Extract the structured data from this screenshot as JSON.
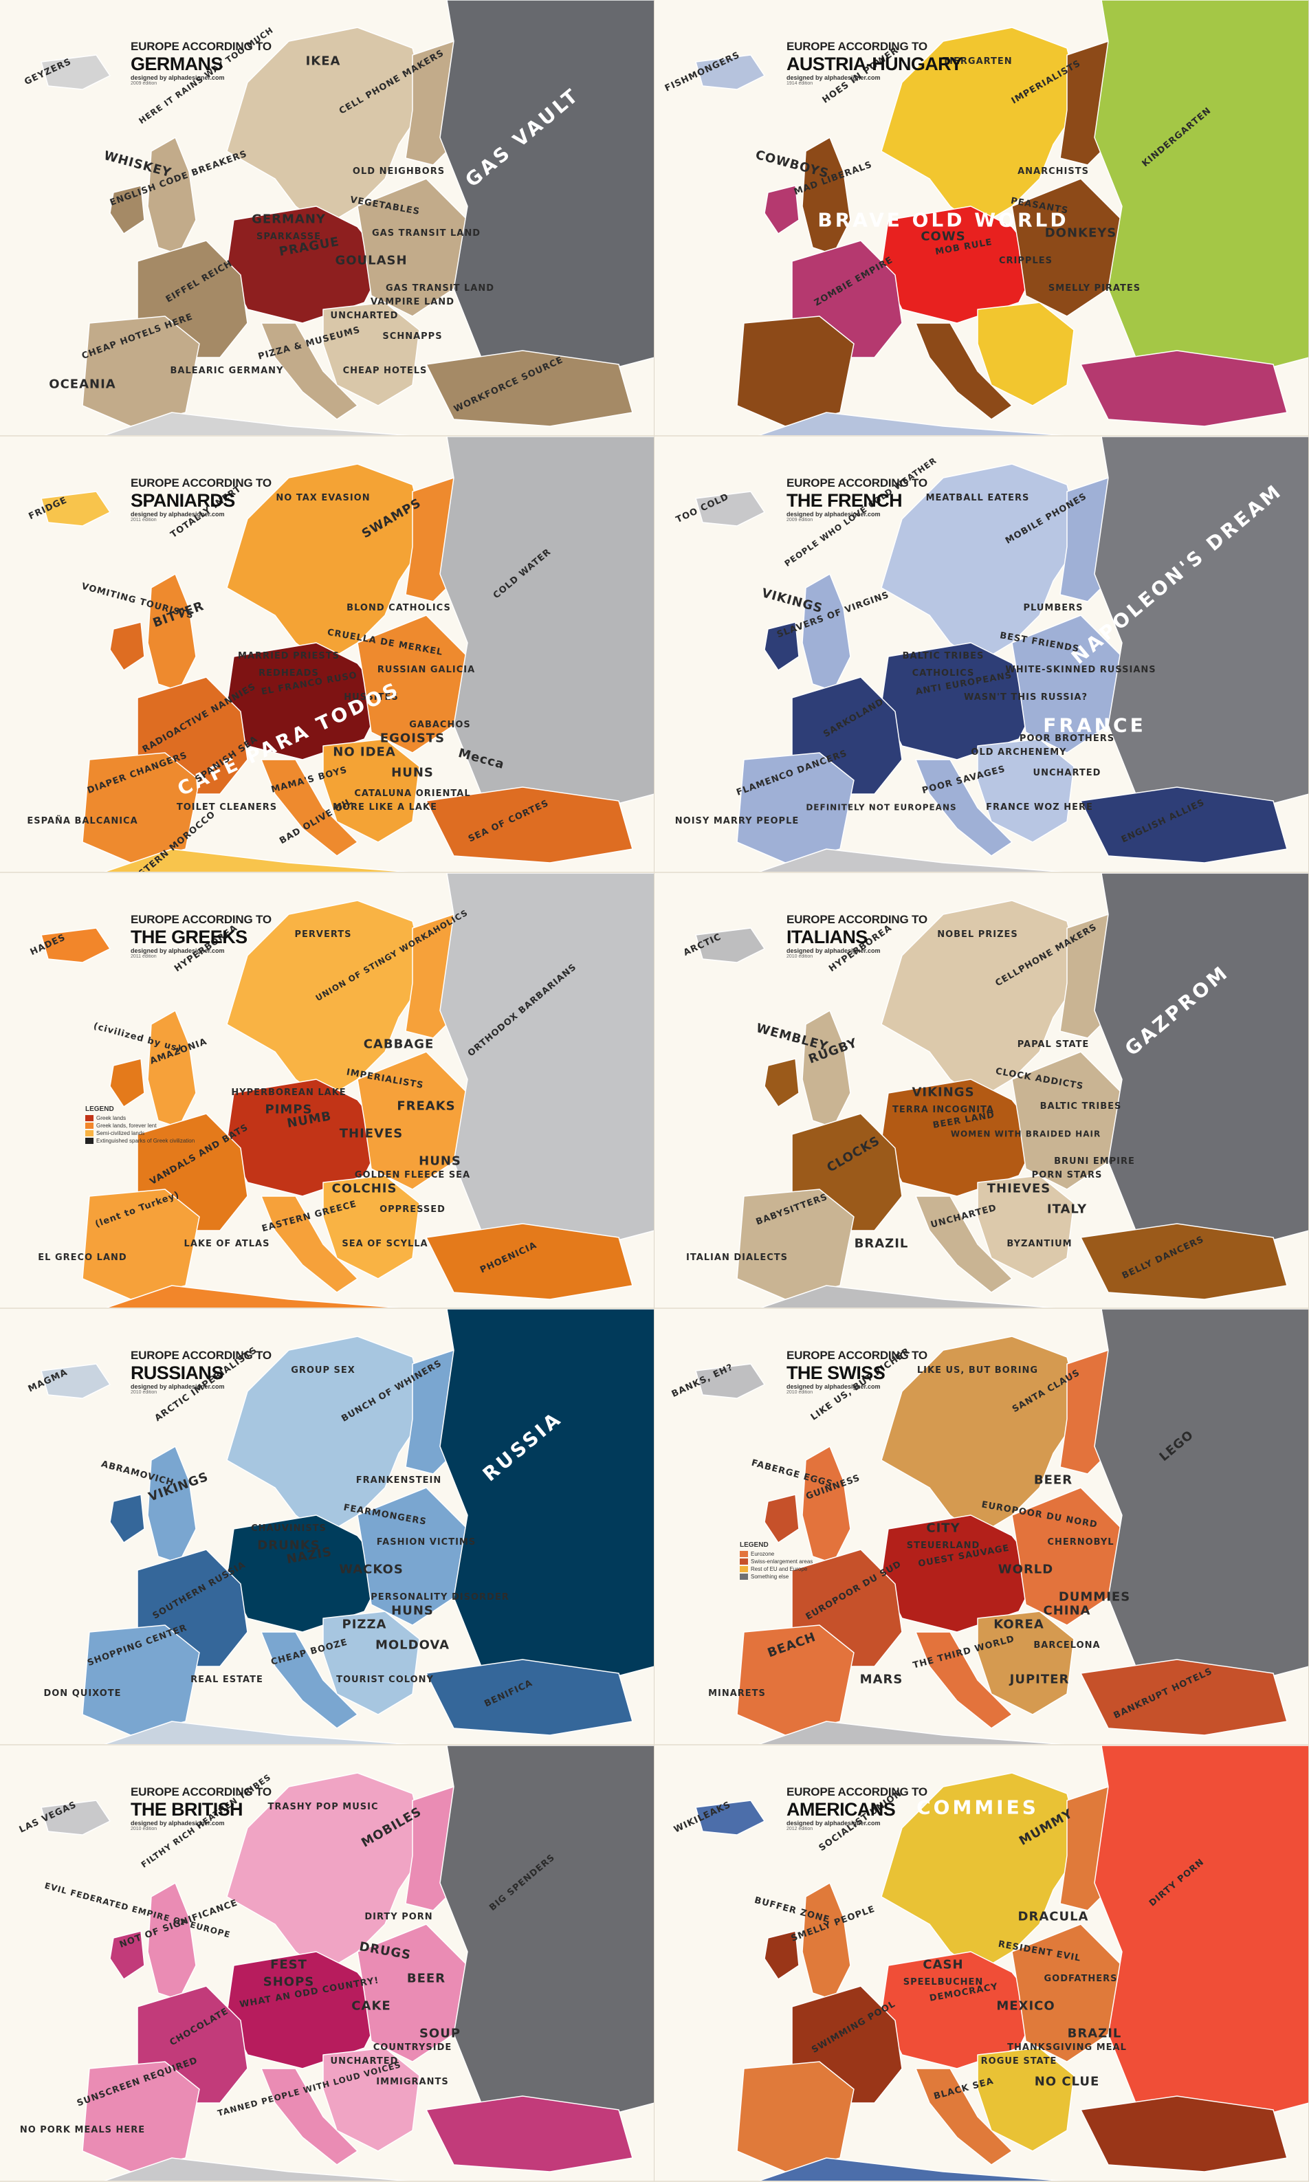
{
  "panels": [
    {
      "id": "germans",
      "header": {
        "sup": "EUROPE ACCORDING TO",
        "main": "GERMANS",
        "by": "designed by alphadesigner.com",
        "edition": "2009 edition"
      },
      "colors": {
        "land": "#d9c7a9",
        "mid": "#c2ab8a",
        "dark": "#a58a66",
        "hot": "#8e1f1f",
        "east": "#67696e",
        "sea": "#fbf8f0",
        "other": "#d4d4d4"
      },
      "labels": [
        "GEYZERS",
        "HERE IT RAINS WAY TOO MUCH",
        "IKEA",
        "CELL PHONE MAKERS",
        "GAS VAULT",
        "WHISKEY",
        "ENGLISH CODE BREAKERS",
        "GERMANY",
        "SPARKASSE",
        "VEGETABLES",
        "OLD NEIGHBORS",
        "GAS TRANSIT LAND",
        "PRAGUE",
        "GOULASH",
        "GAS TRANSIT LAND",
        "EIFFEL REICH",
        "VAMPIRE LAND",
        "UNCHARTED",
        "SCHNAPPS",
        "PIZZA & MUSEUMS",
        "CHEAP HOTELS HERE",
        "OCEANIA",
        "BALEARIC GERMANY",
        "CHEAP HOTELS",
        "WORKFORCE SOURCE"
      ]
    },
    {
      "id": "austria-hungary",
      "header": {
        "sup": "EUROPE ACCORDING TO",
        "main": "AUSTRIA-HUNGARY",
        "by": "designed by alphadesigner.com",
        "edition": "1914 edition"
      },
      "colors": {
        "land": "#f2c62f",
        "mid": "#8d4a18",
        "dark": "#b5396f",
        "hot": "#e8211f",
        "east": "#a4c746",
        "sea": "#fbf8f0",
        "other": "#b6c3dd"
      },
      "labels": [
        "FISHMONGERS",
        "HOES IN POWER",
        "TIERGARTEN",
        "IMPERIALISTS",
        "KINDERGARTEN",
        "COWBOYS",
        "MAD LIBERALS",
        "BRAVE OLD WORLD",
        "COWS",
        "PEASANTS",
        "ANARCHISTS",
        "DONKEYS",
        "MOB RULE",
        "CRIPPLES",
        "SMELLY PIRATES",
        "ZOMBIE EMPIRE"
      ]
    },
    {
      "id": "spaniards",
      "header": {
        "sup": "EUROPE ACCORDING TO",
        "main": "SPANIARDS",
        "by": "designed by alphadesigner.com",
        "edition": "2011 edition"
      },
      "colors": {
        "land": "#f4a335",
        "mid": "#ee8a2e",
        "dark": "#de6d22",
        "hot": "#7e1313",
        "east": "#b5b6b8",
        "sea": "#fbf8f0",
        "other": "#f8c44c"
      },
      "labels": [
        "FRIDGE",
        "TOTALLY INERT",
        "NO TAX EVASION",
        "SWAMPS",
        "COLD WATER",
        "VOMITING TOURISTS",
        "BITTER",
        "MARRIED PRIESTS",
        "REDHEADS",
        "CRUELLA DE MERKEL",
        "BLOND CATHOLICS",
        "RUSSIAN GALICIA",
        "EL FRANCO RUSO",
        "HUSSITES",
        "GABACHOS",
        "RADIOACTIVE NANNIES",
        "EGOISTS",
        "NO IDEA",
        "HUNS",
        "MAMA'S BOYS",
        "DIAPER CHANGERS",
        "ESPAÑA BALCANICA",
        "TOILET CLEANERS",
        "MORE LIKE A LAKE",
        "SEA OF CORTES",
        "CAFE PARA TODOS",
        "SPANISH SEA",
        "CATALUNA ORIENTAL",
        "BAD OLIVE OIL",
        "EASTERN MOROCCO",
        "Mecca"
      ]
    },
    {
      "id": "french",
      "header": {
        "sup": "EUROPE ACCORDING TO",
        "main": "THE FRENCH",
        "by": "designed by alphadesigner.com",
        "edition": "2009 edition"
      },
      "colors": {
        "land": "#b8c6e3",
        "mid": "#9fb0d6",
        "dark": "#2e3e77",
        "hot": "#2e3e77",
        "east": "#7a7b80",
        "sea": "#fbf8f0",
        "other": "#c8c8ca"
      },
      "labels": [
        "TOO COLD",
        "PEOPLE WHO LOVE COLD WEATHER",
        "MEATBALL EATERS",
        "MOBILE PHONES",
        "NAPOLEON'S DREAM",
        "VIKINGS",
        "SLAVERS OF VIRGINS",
        "BALTIC TRIBES",
        "CATHOLICS",
        "BEST FRIENDS",
        "PLUMBERS",
        "WHITE-SKINNED RUSSIANS",
        "ANTI EUROPEANS",
        "WASN'T THIS RUSSIA?",
        "FRANCE",
        "SARKOLAND",
        "POOR BROTHERS",
        "OLD ARCHENEMY",
        "UNCHARTED",
        "POOR SAVAGES",
        "FLAMENCO DANCERS",
        "NOISY MARRY PEOPLE",
        "DEFINITELY NOT EUROPEANS",
        "FRANCE WOZ HERE",
        "ENGLISH ALLIES"
      ]
    },
    {
      "id": "greeks",
      "header": {
        "sup": "EUROPE ACCORDING TO",
        "main": "THE GREEKS",
        "by": "designed by alphadesigner.com",
        "edition": "2011 edition"
      },
      "colors": {
        "land": "#f9b344",
        "mid": "#f6a13a",
        "dark": "#e47a1b",
        "hot": "#c23417",
        "east": "#c3c4c6",
        "sea": "#fbf8f0",
        "other": "#f2862a"
      },
      "labels": [
        "HADES",
        "HYPERBOREA",
        "PERVERTS",
        "UNION OF STINGY WORKAHOLICS",
        "ORTHODOX BARBARIANS",
        "(civilized by us)",
        "AMAZONIA",
        "HYPERBOREAN LAKE",
        "PIMPS",
        "IMPERIALISTS",
        "CABBAGE",
        "FREAKS",
        "NUMB",
        "THIEVES",
        "HUNS",
        "VANDALS AND BATS",
        "GOLDEN FLEECE SEA",
        "COLCHIS",
        "OPPRESSED",
        "EASTERN GREECE",
        "(lent to Turkey)",
        "EL GRECO LAND",
        "LAKE OF ATLAS",
        "SEA OF SCYLLA",
        "PHOENICIA"
      ],
      "legend": {
        "title": "LEGEND",
        "items": [
          "Greek lands",
          "Greek lands, forever lent",
          "Semi-civilized lands",
          "Extinguished sparks of Greek civilization"
        ],
        "colors": [
          "#c23417",
          "#f2862a",
          "#f9b344",
          "#222222"
        ]
      }
    },
    {
      "id": "italians",
      "header": {
        "sup": "EUROPE ACCORDING TO",
        "main": "ITALIANS",
        "by": "designed by alphadesigner.com",
        "edition": "2010 edition"
      },
      "colors": {
        "land": "#dcc9ab",
        "mid": "#c9b493",
        "dark": "#9b5a1a",
        "hot": "#b35a14",
        "east": "#6e6f74",
        "sea": "#fbf8f0",
        "other": "#bebebf"
      },
      "labels": [
        "ARCTIC",
        "HYPERBOREA",
        "NOBEL PRIZES",
        "CELLPHONE MAKERS",
        "GAZPROM",
        "WEMBLEY",
        "RUGBY",
        "VIKINGS",
        "TERRA INCOGNITA",
        "CLOCK ADDICTS",
        "PAPAL STATE",
        "BALTIC TRIBES",
        "BEER LAND",
        "WOMEN WITH BRAIDED HAIR",
        "BRUNI EMPIRE",
        "CLOCKS",
        "PORN STARS",
        "THIEVES",
        "ITALY",
        "UNCHARTED",
        "BABYSITTERS",
        "ITALIAN DIALECTS",
        "BRAZIL",
        "BYZANTIUM",
        "BELLY DANCERS"
      ]
    },
    {
      "id": "russians",
      "header": {
        "sup": "EUROPE ACCORDING TO",
        "main": "RUSSIANS",
        "by": "designed by alphadesigner.com",
        "edition": "2010 edition"
      },
      "colors": {
        "land": "#a7c6e0",
        "mid": "#7aa6d0",
        "dark": "#35679a",
        "hot": "#003d5c",
        "east": "#013a5a",
        "sea": "#fbf8f0",
        "other": "#c9d4e0"
      },
      "labels": [
        "MAGMA",
        "ARCTIC IMPERIALISTS",
        "GROUP SEX",
        "BUNCH OF WHINERS",
        "RUSSIA",
        "ABRAMOVICH",
        "VIKINGS",
        "CHAUVINISTS",
        "DRUNKS",
        "FEARMONGERS",
        "FRANKENSTEIN",
        "FASHION VICTIMS",
        "NAZIS",
        "WACKOS",
        "PERSONALITY DISORDER",
        "SOUTHERN RUSSIA",
        "HUNS",
        "PIZZA",
        "MOLDOVA",
        "CHEAP BOOZE",
        "SHOPPING CENTER",
        "DON QUIXOTE",
        "REAL ESTATE",
        "TOURIST COLONY",
        "BENIFICA"
      ]
    },
    {
      "id": "swiss",
      "header": {
        "sup": "EUROPE ACCORDING TO",
        "main": "THE SWISS",
        "by": "designed by alphadesigner.com",
        "edition": "2010 edition"
      },
      "colors": {
        "land": "#d59a50",
        "mid": "#e3733c",
        "dark": "#c6512a",
        "hot": "#b3201a",
        "east": "#6f7074",
        "sea": "#fbf8f0",
        "other": "#bfbfc1"
      },
      "labels": [
        "BANKS, EH?",
        "LIKE US, BUT RICHER",
        "LIKE US, BUT BORING",
        "SANTA CLAUS",
        "LEGO",
        "FABERGE EGGS",
        "GUINNESS",
        "CITY",
        "STEUERLAND",
        "EUROPOOR DU NORD",
        "BEER",
        "CHERNOBYL",
        "OUEST SAUVAGE",
        "WORLD",
        "DUMMIES",
        "EUROPOOR DU SUD",
        "CHINA",
        "KOREA",
        "BARCELONA",
        "THE THIRD WORLD",
        "BEACH",
        "MINARETS",
        "MARS",
        "JUPITER",
        "BANKRUPT HOTELS"
      ],
      "legend": {
        "title": "LEGEND",
        "items": [
          "Eurozone",
          "Swiss-enlargement areas",
          "Rest of EU and Europe",
          "Something else"
        ],
        "colors": [
          "#e3733c",
          "#c6512a",
          "#f2b23a",
          "#6f7074"
        ]
      }
    },
    {
      "id": "british",
      "header": {
        "sup": "EUROPE ACCORDING TO",
        "main": "THE BRITISH",
        "by": "designed by alphadesigner.com",
        "edition": "2010 edition"
      },
      "colors": {
        "land": "#f0a4c4",
        "mid": "#ea8cb4",
        "dark": "#c23b7a",
        "hot": "#b71c5d",
        "east": "#6b6c70",
        "sea": "#fbf8f0",
        "other": "#c9c9cb"
      },
      "labels": [
        "LAS VEGAS",
        "FILTHY RICH HEATHEN TRIBES",
        "TRASHY POP MUSIC",
        "MOBILES",
        "BIG SPENDERS",
        "EVIL FEDERATED EMPIRE OF EUROPE",
        "NOT OF SIGNIFICANCE",
        "FEST",
        "SHOPS",
        "DRUGS",
        "DIRTY PORN",
        "BEER",
        "WHAT AN ODD COUNTRY!",
        "CAKE",
        "SOUP",
        "CHOCOLATE",
        "COUNTRYSIDE",
        "UNCHARTED",
        "IMMIGRANTS",
        "TANNED PEOPLE WITH LOUD VOICES",
        "SUNSCREEN REQUIRED",
        "NO PORK MEALS HERE"
      ]
    },
    {
      "id": "americans",
      "header": {
        "sup": "EUROPE ACCORDING TO",
        "main": "AMERICANS",
        "by": "designed by alphadesigner.com",
        "edition": "2012 edition"
      },
      "colors": {
        "land": "#e9c235",
        "mid": "#e07a3a",
        "dark": "#9a3618",
        "hot": "#f04e37",
        "east": "#f04e37",
        "sea": "#fbf8f0",
        "other": "#4c6eaa"
      },
      "labels": [
        "WIKILEAKS",
        "SOCIALIST UNION",
        "COMMIES",
        "MUMMY",
        "DIRTY PORN",
        "BUFFER ZONE",
        "SMELLY PEOPLE",
        "CASH",
        "SPEELBUCHEN",
        "RESIDENT EVIL",
        "DRACULA",
        "GODFATHERS",
        "DEMOCRACY",
        "MEXICO",
        "BRAZIL",
        "SWIMMING POOL",
        "THANKSGIVING MEAL",
        "ROGUE STATE",
        "NO CLUE",
        "BLACK SEA"
      ]
    }
  ]
}
